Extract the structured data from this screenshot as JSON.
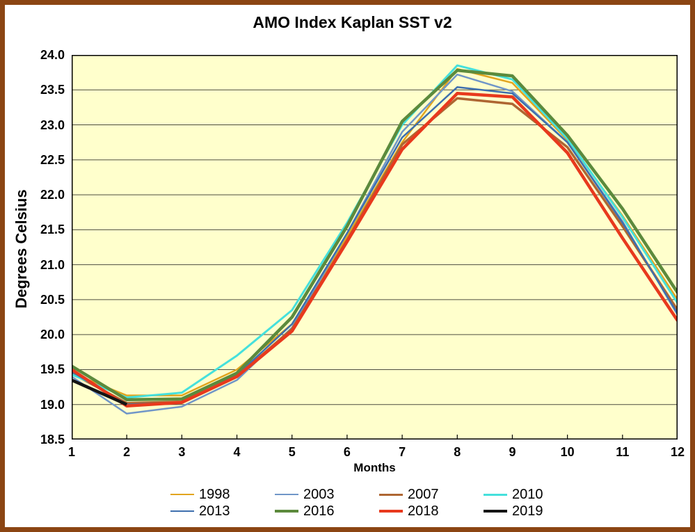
{
  "colors": {
    "page_border": "#8B4513",
    "plot_background": "#FFFFCC",
    "plot_frame": "#000000",
    "gridline": "#4D4D40"
  },
  "chart_data": {
    "type": "line",
    "title": "AMO Index Kaplan SST v2",
    "xlabel": "Months",
    "ylabel": "Degrees Celsius",
    "x": [
      1,
      2,
      3,
      4,
      5,
      6,
      7,
      8,
      9,
      10,
      11,
      12
    ],
    "x_ticks": [
      "1",
      "2",
      "3",
      "4",
      "5",
      "6",
      "7",
      "8",
      "9",
      "10",
      "11",
      "12"
    ],
    "y_ticks": [
      "24.0",
      "23.5",
      "23.0",
      "22.5",
      "22.0",
      "21.5",
      "21.0",
      "20.5",
      "20.0",
      "19.5",
      "19.0",
      "18.5"
    ],
    "ylim": [
      18.5,
      24.0
    ],
    "ytick_step": 0.5,
    "grid": true,
    "legend_position": "bottom",
    "series": [
      {
        "name": "1998",
        "color": "#E2A41E",
        "width": 2.5,
        "values": [
          19.45,
          19.13,
          19.13,
          19.5,
          20.15,
          21.4,
          22.75,
          23.8,
          23.6,
          22.78,
          21.7,
          20.5
        ]
      },
      {
        "name": "2003",
        "color": "#7096C8",
        "width": 2.5,
        "values": [
          19.4,
          18.87,
          18.97,
          19.35,
          20.1,
          21.45,
          22.9,
          23.72,
          23.48,
          22.75,
          21.62,
          20.28
        ]
      },
      {
        "name": "2007",
        "color": "#AE6632",
        "width": 3.5,
        "values": [
          19.45,
          19.02,
          19.04,
          19.4,
          20.08,
          21.35,
          22.72,
          23.38,
          23.3,
          22.68,
          21.55,
          20.35
        ]
      },
      {
        "name": "2010",
        "color": "#45E0DC",
        "width": 3,
        "values": [
          19.43,
          19.1,
          19.17,
          19.7,
          20.35,
          21.6,
          23.0,
          23.85,
          23.65,
          22.8,
          21.68,
          20.45
        ]
      },
      {
        "name": "2013",
        "color": "#3E6FAE",
        "width": 2.5,
        "values": [
          19.47,
          19.0,
          19.03,
          19.42,
          20.15,
          21.45,
          22.82,
          23.54,
          23.45,
          22.75,
          21.6,
          20.3
        ]
      },
      {
        "name": "2016",
        "color": "#5C8A3C",
        "width": 4.5,
        "values": [
          19.55,
          19.07,
          19.08,
          19.45,
          20.25,
          21.55,
          23.05,
          23.78,
          23.7,
          22.85,
          21.8,
          20.6
        ]
      },
      {
        "name": "2018",
        "color": "#E8391D",
        "width": 4.5,
        "values": [
          19.5,
          18.98,
          19.03,
          19.4,
          20.05,
          21.33,
          22.65,
          23.45,
          23.4,
          22.6,
          21.38,
          20.2
        ]
      },
      {
        "name": "2019",
        "color": "#141414",
        "width": 4.5,
        "values": [
          19.35,
          19.0
        ]
      }
    ]
  }
}
